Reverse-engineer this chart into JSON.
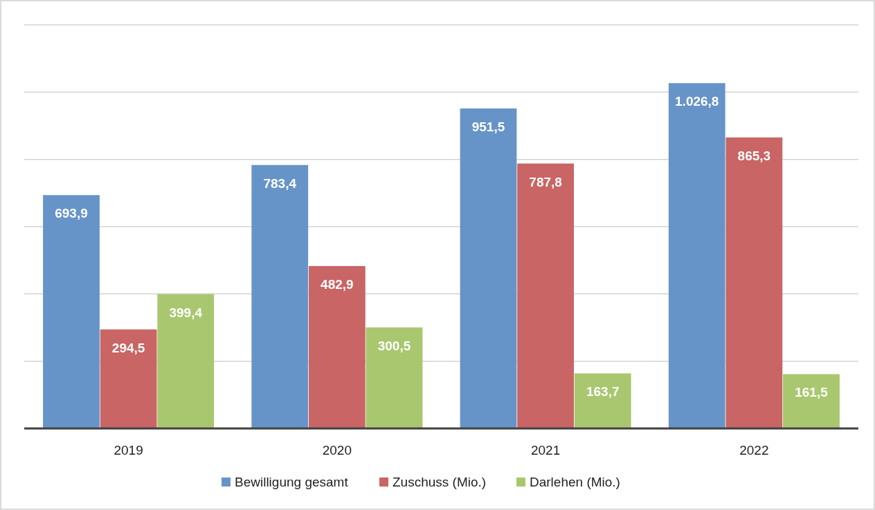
{
  "chart_data": {
    "type": "bar",
    "categories": [
      "2019",
      "2020",
      "2021",
      "2022"
    ],
    "series": [
      {
        "name": "Bewilligung gesamt",
        "color": "#6794c8",
        "values": [
          693.9,
          783.4,
          951.5,
          1026.8
        ],
        "value_labels": [
          "693,9",
          "783,4",
          "951,5",
          "1.026,8"
        ]
      },
      {
        "name": "Zuschuss (Mio.)",
        "color": "#c96565",
        "values": [
          294.5,
          482.9,
          787.8,
          865.3
        ],
        "value_labels": [
          "294,5",
          "482,9",
          "787,8",
          "865,3"
        ]
      },
      {
        "name": "Darlehen (Mio.)",
        "color": "#a9c76f",
        "values": [
          399.4,
          300.5,
          163.7,
          161.5
        ],
        "value_labels": [
          "399,4",
          "300,5",
          "163,7",
          "161,5"
        ]
      }
    ],
    "ylim": [
      0,
      1200
    ],
    "yticks": [
      {
        "value": 0,
        "label": null
      },
      {
        "value": 200,
        "label": null
      },
      {
        "value": 400,
        "label": null
      },
      {
        "value": 600,
        "label": null
      },
      {
        "value": 800,
        "label": null
      },
      {
        "value": 1000,
        "label": null
      },
      {
        "value": 1200,
        "label": null
      }
    ],
    "tick_labels": "x",
    "grid": "y",
    "legend": "bottom"
  }
}
